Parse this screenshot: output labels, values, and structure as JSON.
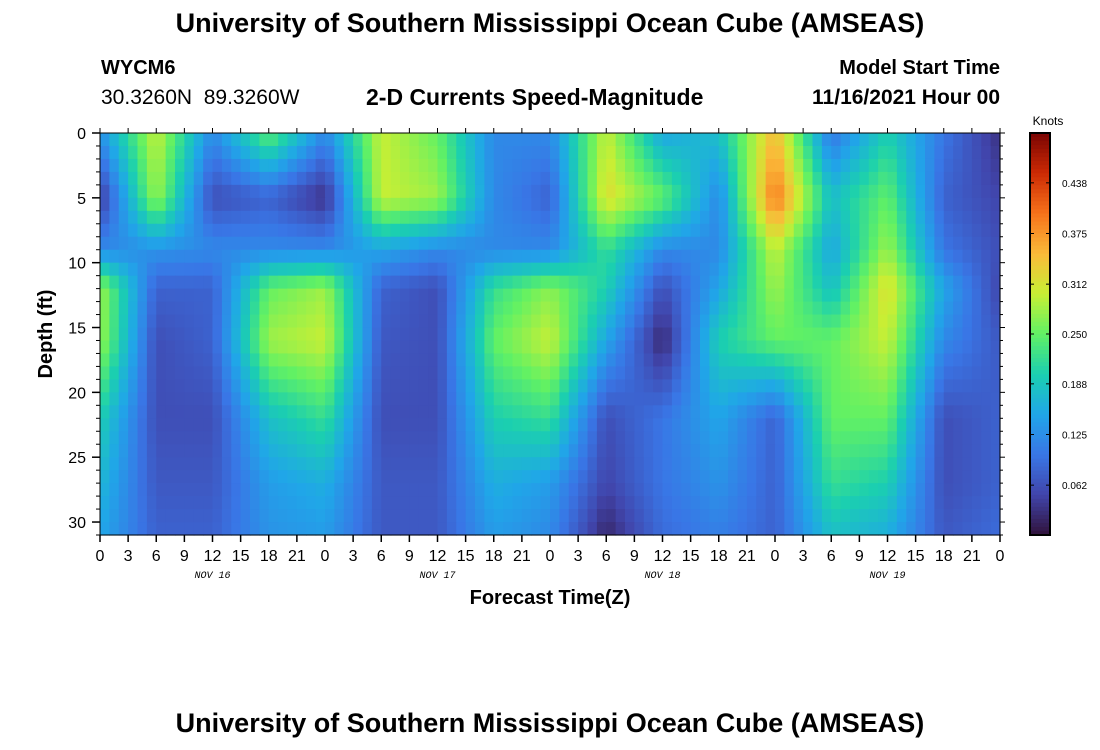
{
  "header": {
    "title": "University of Southern Mississippi Ocean Cube (AMSEAS)",
    "station_id": "WYCM6",
    "coordinates": "30.3260N  89.3260W",
    "subtitle": "2-D Currents Speed-Magnitude",
    "model_start_label": "Model Start Time",
    "model_start_value": "11/16/2021 Hour 00"
  },
  "footer": {
    "title_repeat": "University of Southern Mississippi Ocean Cube (AMSEAS)"
  },
  "chart_data": {
    "type": "heatmap",
    "xlabel": "Forecast Time(Z)",
    "ylabel": "Depth (ft)",
    "x_unit": "hours from model start",
    "xlim": [
      0,
      96
    ],
    "ylim": [
      0,
      31
    ],
    "y_inverted": true,
    "x_ticks": [
      0,
      3,
      6,
      9,
      12,
      15,
      18,
      21,
      24,
      27,
      30,
      33,
      36,
      39,
      42,
      45,
      48,
      51,
      54,
      57,
      60,
      63,
      66,
      69,
      72,
      75,
      78,
      81,
      84,
      87,
      90,
      93,
      96
    ],
    "x_tick_labels": [
      "0",
      "3",
      "6",
      "9",
      "12",
      "15",
      "18",
      "21",
      "0",
      "3",
      "6",
      "9",
      "12",
      "15",
      "18",
      "21",
      "0",
      "3",
      "6",
      "9",
      "12",
      "15",
      "18",
      "21",
      "0",
      "3",
      "6",
      "9",
      "12",
      "15",
      "18",
      "21",
      "0"
    ],
    "y_ticks": [
      0,
      5,
      10,
      15,
      20,
      25,
      30
    ],
    "y_tick_labels": [
      "0",
      "5",
      "10",
      "15",
      "20",
      "25",
      "30"
    ],
    "day_labels": [
      {
        "x": 12,
        "label": "NOV 16"
      },
      {
        "x": 36,
        "label": "NOV 17"
      },
      {
        "x": 60,
        "label": "NOV 18"
      },
      {
        "x": 84,
        "label": "NOV 19"
      }
    ],
    "colorbar": {
      "label": "Knots",
      "min": 0,
      "max": 0.5,
      "ticks": [
        0.062,
        0.125,
        0.188,
        0.25,
        0.312,
        0.375,
        0.438
      ],
      "tick_labels": [
        "0.062",
        "0.125",
        "0.188",
        "0.250",
        "0.312",
        "0.375",
        "0.438"
      ]
    },
    "time_hours": [
      0,
      6,
      12,
      18,
      24,
      30,
      36,
      42,
      48,
      54,
      60,
      66,
      72,
      78,
      84,
      90,
      96
    ],
    "layers": [
      {
        "depth_ft": 0,
        "speed_knots": [
          0.13,
          0.3,
          0.12,
          0.25,
          0.12,
          0.3,
          0.25,
          0.12,
          0.12,
          0.3,
          0.15,
          0.18,
          0.35,
          0.1,
          0.2,
          0.1,
          0.03
        ]
      },
      {
        "depth_ft": 5,
        "speed_knots": [
          0.04,
          0.28,
          0.06,
          0.08,
          0.03,
          0.3,
          0.28,
          0.12,
          0.08,
          0.32,
          0.25,
          0.12,
          0.4,
          0.18,
          0.25,
          0.08,
          0.05
        ]
      },
      {
        "depth_ft": 9,
        "speed_knots": [
          0.12,
          0.13,
          0.12,
          0.12,
          0.12,
          0.15,
          0.12,
          0.12,
          0.12,
          0.22,
          0.12,
          0.12,
          0.3,
          0.15,
          0.28,
          0.1,
          0.06
        ]
      },
      {
        "depth_ft": 12,
        "speed_knots": [
          0.28,
          0.08,
          0.08,
          0.25,
          0.28,
          0.08,
          0.06,
          0.22,
          0.27,
          0.2,
          0.06,
          0.15,
          0.28,
          0.18,
          0.32,
          0.15,
          0.05
        ]
      },
      {
        "depth_ft": 16,
        "speed_knots": [
          0.28,
          0.06,
          0.08,
          0.28,
          0.3,
          0.07,
          0.06,
          0.25,
          0.3,
          0.15,
          0.02,
          0.2,
          0.25,
          0.25,
          0.3,
          0.12,
          0.07
        ]
      },
      {
        "depth_ft": 22,
        "speed_knots": [
          0.2,
          0.06,
          0.06,
          0.18,
          0.22,
          0.06,
          0.06,
          0.2,
          0.22,
          0.06,
          0.1,
          0.15,
          0.08,
          0.25,
          0.25,
          0.06,
          0.08
        ]
      },
      {
        "depth_ft": 27,
        "speed_knots": [
          0.17,
          0.07,
          0.07,
          0.14,
          0.16,
          0.07,
          0.07,
          0.16,
          0.14,
          0.05,
          0.1,
          0.13,
          0.08,
          0.22,
          0.2,
          0.06,
          0.08
        ]
      },
      {
        "depth_ft": 31,
        "speed_knots": [
          0.15,
          0.08,
          0.08,
          0.13,
          0.14,
          0.07,
          0.07,
          0.14,
          0.12,
          0.02,
          0.09,
          0.11,
          0.08,
          0.18,
          0.16,
          0.07,
          0.09
        ]
      }
    ]
  }
}
